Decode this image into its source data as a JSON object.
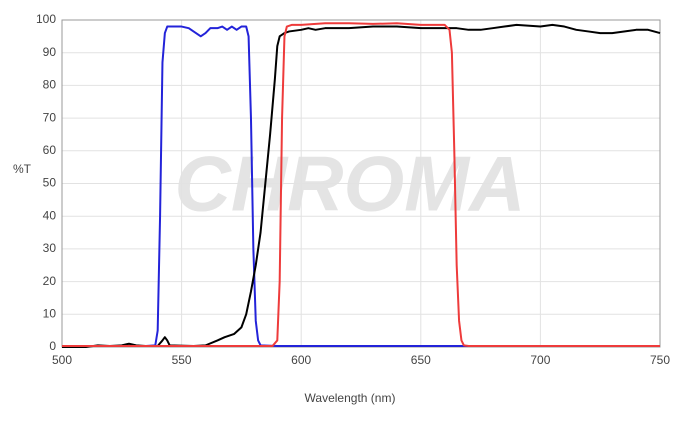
{
  "chart_data": {
    "type": "line",
    "watermark": "CHROMA",
    "xlabel": "Wavelength (nm)",
    "ylabel": "%T",
    "xlim": [
      500,
      750
    ],
    "xticks": [
      500,
      550,
      600,
      650,
      700,
      750
    ],
    "ylim": [
      0,
      100
    ],
    "yticks": [
      0,
      10,
      20,
      30,
      40,
      50,
      60,
      70,
      80,
      90,
      100
    ],
    "grid": true,
    "series": [
      {
        "color": "#2323d9",
        "x": [
          500,
          535,
          539,
          540,
          541,
          542,
          543,
          544,
          546,
          550,
          553,
          556,
          558,
          560,
          562,
          565,
          567,
          569,
          571,
          573,
          575,
          577,
          578,
          579,
          580,
          581,
          582,
          583,
          590,
          750
        ],
        "values": [
          0.3,
          0.3,
          0.5,
          5,
          40,
          87,
          96,
          98,
          98,
          98,
          97.5,
          96,
          95,
          96,
          97.5,
          97.5,
          98,
          97,
          98,
          97,
          98,
          98,
          95,
          70,
          30,
          8,
          2,
          0.5,
          0.3,
          0.3
        ]
      },
      {
        "color": "#000000",
        "x": [
          500,
          510,
          515,
          520,
          525,
          528,
          531,
          535,
          540,
          542,
          543,
          544,
          545,
          555,
          560,
          565,
          568,
          572,
          575,
          577,
          579,
          581,
          583,
          585,
          587,
          589,
          590,
          591,
          593,
          595,
          600,
          603,
          606,
          610,
          620,
          630,
          640,
          650,
          660,
          665,
          670,
          675,
          680,
          685,
          690,
          700,
          705,
          710,
          715,
          720,
          725,
          730,
          740,
          745,
          750
        ],
        "values": [
          0,
          0,
          0.5,
          0.3,
          0.5,
          1,
          0.5,
          0.3,
          0.3,
          2,
          3,
          2,
          0.5,
          0.3,
          0.5,
          2,
          3,
          4,
          6,
          10,
          17,
          25,
          35,
          50,
          65,
          82,
          92,
          95,
          96,
          96.5,
          97,
          97.5,
          97,
          97.5,
          97.5,
          98,
          98,
          97.5,
          97.5,
          97.5,
          97,
          97,
          97.5,
          98,
          98.5,
          98,
          98.5,
          98,
          97,
          96.5,
          96,
          96,
          97,
          97,
          96
        ]
      },
      {
        "color": "#ee3b3b",
        "x": [
          500,
          588,
          590,
          591,
          592,
          593,
          594,
          596,
          600,
          610,
          620,
          630,
          640,
          650,
          660,
          662,
          663,
          664,
          665,
          666,
          667,
          668,
          670,
          750
        ],
        "values": [
          0.3,
          0.3,
          2,
          20,
          70,
          95,
          98,
          98.5,
          98.5,
          99,
          99,
          98.8,
          99,
          98.5,
          98.5,
          97,
          90,
          60,
          25,
          8,
          2,
          0.5,
          0.3,
          0.3
        ]
      }
    ]
  }
}
